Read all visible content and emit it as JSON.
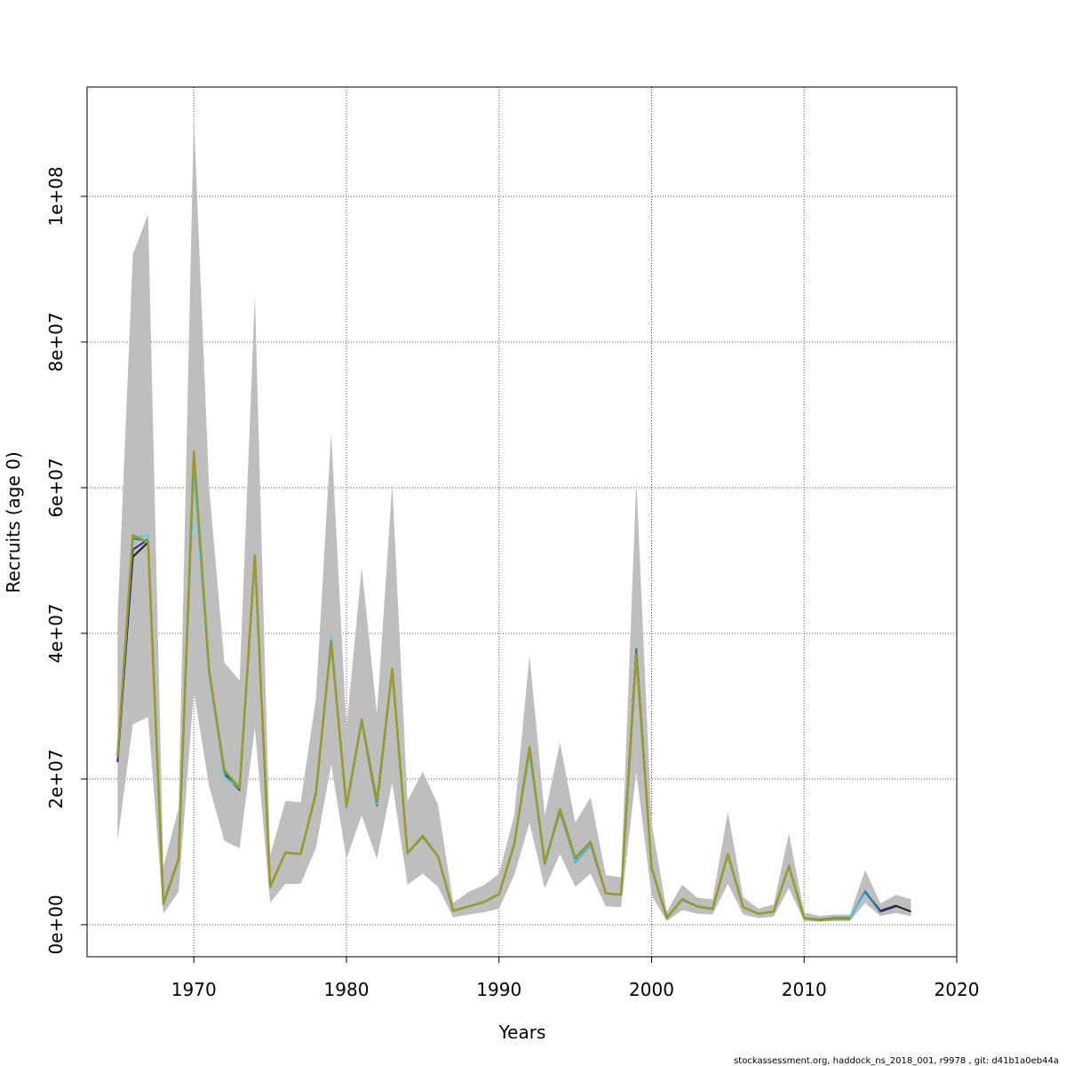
{
  "chart_data": {
    "type": "line",
    "xlabel": "Years",
    "ylabel": "Recruits (age 0)",
    "xlim": [
      1963,
      2020
    ],
    "ylim": [
      -4400000,
      115000000
    ],
    "x_ticks": [
      1970,
      1980,
      1990,
      2000,
      2010,
      2020
    ],
    "x_tick_labels": [
      "1970",
      "1980",
      "1990",
      "2000",
      "2010",
      "2020"
    ],
    "y_ticks": [
      0,
      20000000,
      40000000,
      60000000,
      80000000,
      100000000
    ],
    "y_tick_labels": [
      "0e+00",
      "2e+07",
      "4e+07",
      "6e+07",
      "8e+07",
      "1e+08"
    ],
    "grid": true,
    "band_color": "#bebebe",
    "confidence_band": {
      "x": [
        1965,
        1966,
        1967,
        1968,
        1969,
        1970,
        1971,
        1972,
        1973,
        1974,
        1975,
        1976,
        1977,
        1978,
        1979,
        1980,
        1981,
        1982,
        1983,
        1984,
        1985,
        1986,
        1987,
        1988,
        1989,
        1990,
        1991,
        1992,
        1993,
        1994,
        1995,
        1996,
        1997,
        1998,
        1999,
        2000,
        2001,
        2002,
        2003,
        2004,
        2005,
        2006,
        2007,
        2008,
        2009,
        2010,
        2011,
        2012,
        2013,
        2014,
        2015,
        2016,
        2017
      ],
      "upper": [
        42000000,
        92000000,
        97500000,
        8000000,
        16000000,
        111000000,
        60000000,
        36000000,
        33500000,
        86500000,
        9500000,
        17000000,
        16800000,
        31000000,
        67500000,
        27000000,
        49000000,
        29000000,
        60500000,
        17000000,
        21000000,
        16500000,
        3000000,
        4500000,
        5400000,
        7000000,
        15000000,
        37000000,
        15000000,
        25000000,
        14000000,
        17500000,
        6800000,
        6500000,
        61000000,
        14000000,
        1800000,
        5500000,
        3700000,
        3500000,
        15500000,
        3800000,
        2200000,
        2800000,
        12500000,
        1700000,
        1200000,
        1400000,
        1400000,
        7500000,
        2900000,
        4100000,
        3500000
      ],
      "lower": [
        11500000,
        27500000,
        28500000,
        1500000,
        4500000,
        32000000,
        19000000,
        11500000,
        10500000,
        27000000,
        3000000,
        5600000,
        5600000,
        10500000,
        22000000,
        9000000,
        15000000,
        9000000,
        19500000,
        5500000,
        7000000,
        5200000,
        1000000,
        1400000,
        1700000,
        2200000,
        6800000,
        14000000,
        5000000,
        9700000,
        5200000,
        7000000,
        2500000,
        2400000,
        21000000,
        4000000,
        500000,
        2000000,
        1500000,
        1400000,
        5600000,
        1400000,
        900000,
        1100000,
        5000000,
        500000,
        400000,
        500000,
        500000,
        3000000,
        1200000,
        1600000,
        1200000
      ]
    },
    "series": [
      {
        "color": "#1a1a1a",
        "x": [
          1965,
          1966,
          1967,
          1968,
          1969,
          1970,
          1971,
          1972,
          1973,
          1974,
          1975,
          1976,
          1977,
          1978,
          1979,
          1980,
          1981,
          1982,
          1983,
          1984,
          1985,
          1986,
          1987,
          1988,
          1989,
          1990,
          1991,
          1992,
          1993,
          1994,
          1995,
          1996,
          1997,
          1998,
          1999,
          2000,
          2001,
          2002,
          2003,
          2004,
          2005,
          2006,
          2007,
          2008,
          2009,
          2010,
          2011,
          2012,
          2013,
          2014,
          2015,
          2016,
          2017
        ],
        "values": [
          22500000,
          50500000,
          52500000,
          2800000,
          9000000,
          63000000,
          34500000,
          20500000,
          18500000,
          50500000,
          5200000,
          9900000,
          9700000,
          18000000,
          39000000,
          16000000,
          28000000,
          16500000,
          35000000,
          9800000,
          12100000,
          9400000,
          1900000,
          2500000,
          3100000,
          4200000,
          11000000,
          24000000,
          8400000,
          15500000,
          8800000,
          11200000,
          4300000,
          4100000,
          37500000,
          7700000,
          1000000,
          3400000,
          2500000,
          2100000,
          9600000,
          2400000,
          1500000,
          1800000,
          8000000,
          900000,
          700000,
          900000,
          900000,
          4500000,
          1900000,
          2600000,
          1800000
        ]
      },
      {
        "color": "#2b2b8c",
        "x": [
          1965,
          1966,
          1967,
          1968,
          1969,
          1970,
          1971,
          1972,
          1973,
          1974,
          1975,
          1976,
          1977,
          1978,
          1979,
          1980,
          1981,
          1982,
          1983,
          1984,
          1985,
          1986,
          1987,
          1988,
          1989,
          1990,
          1991,
          1992,
          1993,
          1994,
          1995,
          1996,
          1997,
          1998,
          1999,
          2000,
          2001,
          2002,
          2003,
          2004,
          2005,
          2006,
          2007,
          2008,
          2009,
          2010,
          2011,
          2012,
          2013,
          2014,
          2015,
          2016
        ],
        "values": [
          22300000,
          51500000,
          52900000,
          2800000,
          9000000,
          63500000,
          34600000,
          20600000,
          18600000,
          50500000,
          5200000,
          9900000,
          9700000,
          18000000,
          39200000,
          16100000,
          28100000,
          16400000,
          35100000,
          9800000,
          12100000,
          9400000,
          1900000,
          2500000,
          3100000,
          4200000,
          11000000,
          24100000,
          8300000,
          15600000,
          8700000,
          11100000,
          4300000,
          4100000,
          37800000,
          7700000,
          1000000,
          3400000,
          2500000,
          2100000,
          9600000,
          2400000,
          1500000,
          1800000,
          8000000,
          900000,
          700000,
          900000,
          900000,
          4500000,
          1800000,
          2500000
        ]
      },
      {
        "color": "#2a7fa8",
        "x": [
          1965,
          1966,
          1967,
          1968,
          1969,
          1970,
          1971,
          1972,
          1973,
          1974,
          1975,
          1976,
          1977,
          1978,
          1979,
          1980,
          1981,
          1982,
          1983,
          1984,
          1985,
          1986,
          1987,
          1988,
          1989,
          1990,
          1991,
          1992,
          1993,
          1994,
          1995,
          1996,
          1997,
          1998,
          1999,
          2000,
          2001,
          2002,
          2003,
          2004,
          2005,
          2006,
          2007,
          2008,
          2009,
          2010,
          2011,
          2012,
          2013,
          2014,
          2015
        ],
        "values": [
          22800000,
          53000000,
          52700000,
          2800000,
          9000000,
          62500000,
          34700000,
          20400000,
          18600000,
          50600000,
          5200000,
          9900000,
          9700000,
          18100000,
          39300000,
          16000000,
          28200000,
          16500000,
          35000000,
          9800000,
          12100000,
          9400000,
          1900000,
          2500000,
          3100000,
          4200000,
          11000000,
          24300000,
          8200000,
          15700000,
          8600000,
          11000000,
          4300000,
          4100000,
          37900000,
          7700000,
          1000000,
          3400000,
          2500000,
          2100000,
          9600000,
          2400000,
          1500000,
          1800000,
          8100000,
          900000,
          700000,
          900000,
          900000,
          4600000,
          1700000
        ]
      },
      {
        "color": "#5bc8e8",
        "x": [
          1965,
          1966,
          1967,
          1968,
          1969,
          1970,
          1971,
          1972,
          1973,
          1974,
          1975,
          1976,
          1977,
          1978,
          1979,
          1980,
          1981,
          1982,
          1983,
          1984,
          1985,
          1986,
          1987,
          1988,
          1989,
          1990,
          1991,
          1992,
          1993,
          1994,
          1995,
          1996,
          1997,
          1998,
          1999,
          2000,
          2001,
          2002,
          2003,
          2004,
          2005,
          2006,
          2007,
          2008,
          2009,
          2010,
          2011,
          2012,
          2013,
          2014
        ],
        "values": [
          23000000,
          53200000,
          53400000,
          2800000,
          9100000,
          62000000,
          34400000,
          20300000,
          18700000,
          50200000,
          5300000,
          9900000,
          9700000,
          18100000,
          39400000,
          16000000,
          28300000,
          16600000,
          34900000,
          9800000,
          12100000,
          9400000,
          1900000,
          2500000,
          3100000,
          4200000,
          11000000,
          23500000,
          8100000,
          15600000,
          8700000,
          11100000,
          4300000,
          4100000,
          36500000,
          7600000,
          1000000,
          3300000,
          2500000,
          2100000,
          9500000,
          2400000,
          1500000,
          1800000,
          7900000,
          900000,
          700000,
          1000000,
          1000000,
          4300000
        ]
      },
      {
        "color": "#2e8b3e",
        "x": [
          1965,
          1966,
          1967,
          1968,
          1969,
          1970,
          1971,
          1972,
          1973,
          1974,
          1975,
          1976,
          1977,
          1978,
          1979,
          1980,
          1981,
          1982,
          1983,
          1984,
          1985,
          1986,
          1987,
          1988,
          1989,
          1990,
          1991,
          1992,
          1993,
          1994,
          1995,
          1996,
          1997,
          1998,
          1999,
          2000,
          2001,
          2002,
          2003,
          2004,
          2005,
          2006,
          2007,
          2008,
          2009,
          2010,
          2011,
          2012,
          2013
        ],
        "values": [
          23100000,
          53400000,
          52600000,
          2900000,
          9100000,
          64500000,
          34900000,
          21000000,
          18700000,
          50600000,
          5300000,
          9900000,
          9700000,
          18100000,
          38900000,
          16200000,
          28100000,
          16900000,
          35100000,
          9800000,
          12100000,
          9400000,
          1900000,
          2500000,
          3100000,
          4200000,
          11100000,
          24200000,
          8400000,
          15800000,
          9100000,
          11300000,
          4300000,
          4100000,
          37300000,
          7800000,
          900000,
          3500000,
          2500000,
          2200000,
          9700000,
          2400000,
          1500000,
          1800000,
          8000000,
          900000,
          700000,
          900000,
          900000
        ]
      },
      {
        "color": "#9a9a2a",
        "x": [
          1965,
          1966,
          1967,
          1968,
          1969,
          1970,
          1971,
          1972,
          1973,
          1974,
          1975,
          1976,
          1977,
          1978,
          1979,
          1980,
          1981,
          1982,
          1983,
          1984,
          1985,
          1986,
          1987,
          1988,
          1989,
          1990,
          1991,
          1992,
          1993,
          1994,
          1995,
          1996,
          1997,
          1998,
          1999,
          2000,
          2001,
          2002,
          2003,
          2004,
          2005,
          2006,
          2007,
          2008,
          2009,
          2010,
          2011,
          2012,
          2013
        ],
        "values": [
          23200000,
          53500000,
          52500000,
          2900000,
          9100000,
          65000000,
          35000000,
          21200000,
          18800000,
          50700000,
          5300000,
          9900000,
          9700000,
          18100000,
          38700000,
          16300000,
          28000000,
          17000000,
          35100000,
          9800000,
          12200000,
          9400000,
          1900000,
          2500000,
          3100000,
          4200000,
          11100000,
          24400000,
          8500000,
          15900000,
          9200000,
          11400000,
          4300000,
          4100000,
          37100000,
          7800000,
          900000,
          3500000,
          2500000,
          2200000,
          9700000,
          2400000,
          1500000,
          1800000,
          8000000,
          900000,
          600000,
          800000,
          800000
        ]
      }
    ]
  },
  "footer": {
    "credit": "stockassessment.org, haddock_ns_2018_001, r9978 , git: d41b1a0eb44a"
  }
}
